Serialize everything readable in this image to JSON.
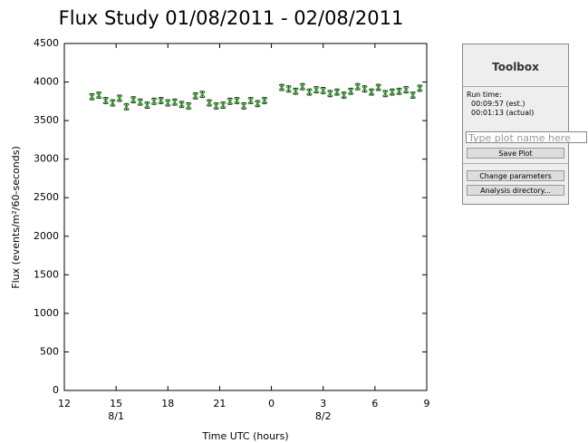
{
  "chart_data": {
    "type": "errorbar-scatter",
    "title": "Flux Study 01/08/2011 - 02/08/2011",
    "x_label": "Time UTC (hours)",
    "y_label": "Flux (events/m²/60-seconds)",
    "xlim": [
      12,
      33
    ],
    "xticks": [
      12,
      15,
      18,
      21,
      {
        "value": 24,
        "label": "0"
      },
      {
        "value": 27,
        "label": "3"
      },
      {
        "value": 30,
        "label": "6"
      },
      {
        "value": 33,
        "label": "9"
      }
    ],
    "x_date_labels": [
      {
        "value": 15,
        "label": "8/1"
      },
      {
        "value": 27,
        "label": "8/2"
      }
    ],
    "ylim": [
      0,
      4500
    ],
    "yticks": [
      0,
      500,
      1000,
      1500,
      2000,
      2500,
      3000,
      3500,
      4000,
      4500
    ],
    "x": [
      13.6,
      14.0,
      14.4,
      14.8,
      15.2,
      15.6,
      16.0,
      16.4,
      16.8,
      17.2,
      17.6,
      18.0,
      18.4,
      18.8,
      19.2,
      19.6,
      20.0,
      20.4,
      20.8,
      21.2,
      21.6,
      22.0,
      22.4,
      22.8,
      23.2,
      23.6,
      24.6,
      25.0,
      25.4,
      25.8,
      26.2,
      26.6,
      27.0,
      27.4,
      27.8,
      28.2,
      28.6,
      29.0,
      29.4,
      29.8,
      30.2,
      30.6,
      31.0,
      31.4,
      31.8,
      32.2,
      32.6
    ],
    "series": [
      {
        "color": "#33a02c",
        "error_color": "#222222",
        "values": [
          3810,
          3830,
          3760,
          3730,
          3790,
          3680,
          3770,
          3740,
          3700,
          3750,
          3760,
          3730,
          3740,
          3710,
          3690,
          3820,
          3840,
          3730,
          3690,
          3700,
          3750,
          3760,
          3690,
          3760,
          3720,
          3760,
          3930,
          3910,
          3880,
          3940,
          3870,
          3900,
          3890,
          3850,
          3870,
          3830,
          3880,
          3940,
          3910,
          3870,
          3930,
          3850,
          3870,
          3880,
          3900,
          3830,
          3920
        ],
        "errors": [
          40,
          40,
          40,
          40,
          40,
          40,
          40,
          40,
          40,
          40,
          40,
          40,
          40,
          40,
          40,
          40,
          40,
          40,
          40,
          40,
          40,
          40,
          40,
          40,
          40,
          40,
          40,
          40,
          40,
          40,
          40,
          40,
          40,
          40,
          40,
          40,
          40,
          40,
          40,
          40,
          40,
          40,
          40,
          40,
          40,
          40,
          40
        ]
      }
    ]
  },
  "toolbox": {
    "title": "Toolbox",
    "run_time_label": "Run time:",
    "run_time_est": "00:09:57 (est.)",
    "run_time_actual": "00:01:13 (actual)",
    "plot_name_placeholder": "Type plot name here",
    "save_button": "Save Plot",
    "change_parameters_button": "Change parameters",
    "analysis_directory_button": "Analysis directory..."
  }
}
